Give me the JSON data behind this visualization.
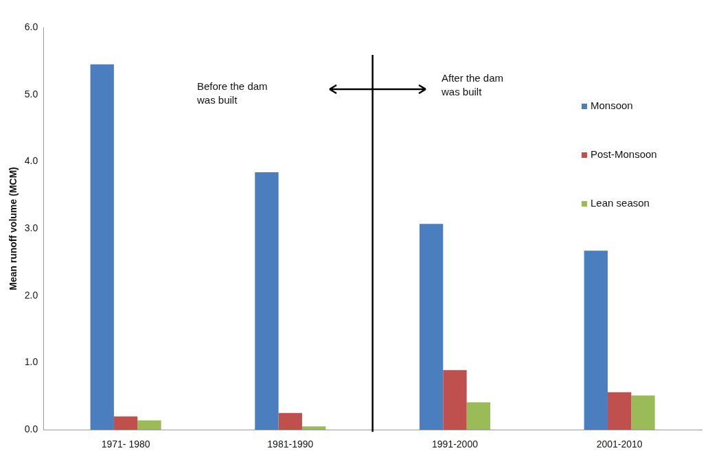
{
  "chart_data": {
    "type": "bar",
    "ylabel": "Mean runoff volume (MCM)",
    "categories": [
      "1971- 1980",
      "1981-1990",
      "1991-2000",
      "2001-2010"
    ],
    "series": [
      {
        "name": "Monsoon",
        "color": "#4a7ebf",
        "values": [
          5.45,
          3.84,
          3.07,
          2.67
        ]
      },
      {
        "name": "Post-Monsoon",
        "color": "#c0504d",
        "values": [
          0.2,
          0.25,
          0.89,
          0.56
        ]
      },
      {
        "name": "Lean season",
        "color": "#9bbb59",
        "values": [
          0.14,
          0.05,
          0.41,
          0.51
        ]
      }
    ],
    "ylim": [
      0,
      6
    ],
    "yticks": [
      {
        "value": 0,
        "label": "0.0"
      },
      {
        "value": 1,
        "label": "1.0"
      },
      {
        "value": 2,
        "label": "2.0"
      },
      {
        "value": 3,
        "label": "3.0"
      },
      {
        "value": 4,
        "label": "4.0"
      },
      {
        "value": 5,
        "label": "5.0"
      },
      {
        "value": 6,
        "label": "6.0"
      }
    ],
    "grid": false,
    "legend": "right",
    "annotations": [
      "Before the dam was built",
      "After the dam was built"
    ]
  }
}
